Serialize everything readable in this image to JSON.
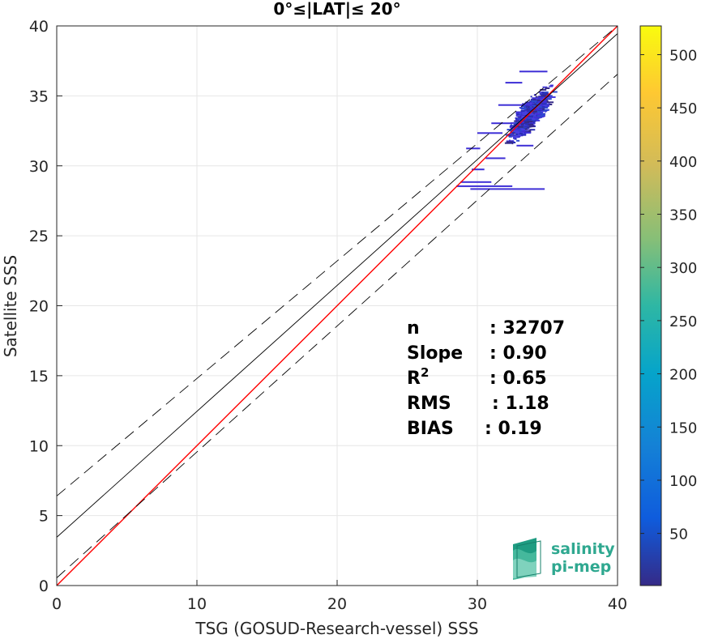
{
  "chart_data": {
    "type": "scatter",
    "title": "0°≤|LAT|≤ 20°",
    "xlabel": "TSG (GOSUD-Research-vessel) SSS",
    "ylabel": "Satellite SSS",
    "xlim": [
      0,
      40
    ],
    "ylim": [
      0,
      40
    ],
    "xticks": [
      0,
      10,
      20,
      30,
      40
    ],
    "yticks": [
      0,
      5,
      10,
      15,
      20,
      25,
      30,
      35,
      40
    ],
    "grid": true,
    "colorbar": {
      "range": [
        1,
        527
      ],
      "ticks": [
        50,
        100,
        150,
        200,
        250,
        300,
        350,
        400,
        450,
        500
      ],
      "colormap": "parula"
    },
    "lines": [
      {
        "kind": "identity",
        "slope": 1.0,
        "intercept": 0.0,
        "color": "#ff0000",
        "style": "solid"
      },
      {
        "kind": "fit",
        "slope": 0.9,
        "intercept": 3.45,
        "color": "#000000",
        "style": "solid"
      },
      {
        "kind": "fit_plus_2rms",
        "slope": 0.84,
        "intercept": 6.4,
        "color": "#000000",
        "style": "dashed"
      },
      {
        "kind": "fit_minus_2rms",
        "slope": 0.9,
        "intercept": 0.55,
        "color": "#000000",
        "style": "dashed"
      }
    ],
    "density_cloud": {
      "x_range": [
        28.2,
        36.3
      ],
      "y_range": [
        27.9,
        39.0
      ],
      "point_color": "#3e2fd6"
    },
    "stats": [
      {
        "label": "n",
        "value": ": 32707"
      },
      {
        "label": "Slope",
        "value": ": 0.90"
      },
      {
        "label": "R",
        "sup": "2",
        "value": ": 0.65"
      },
      {
        "label": "RMS",
        "value": ": 1.18"
      },
      {
        "label": "BIAS",
        "value": ": 0.19"
      }
    ]
  },
  "logo": {
    "line1": "salinity",
    "line2": "pi-mep",
    "color": "#2fa890"
  }
}
